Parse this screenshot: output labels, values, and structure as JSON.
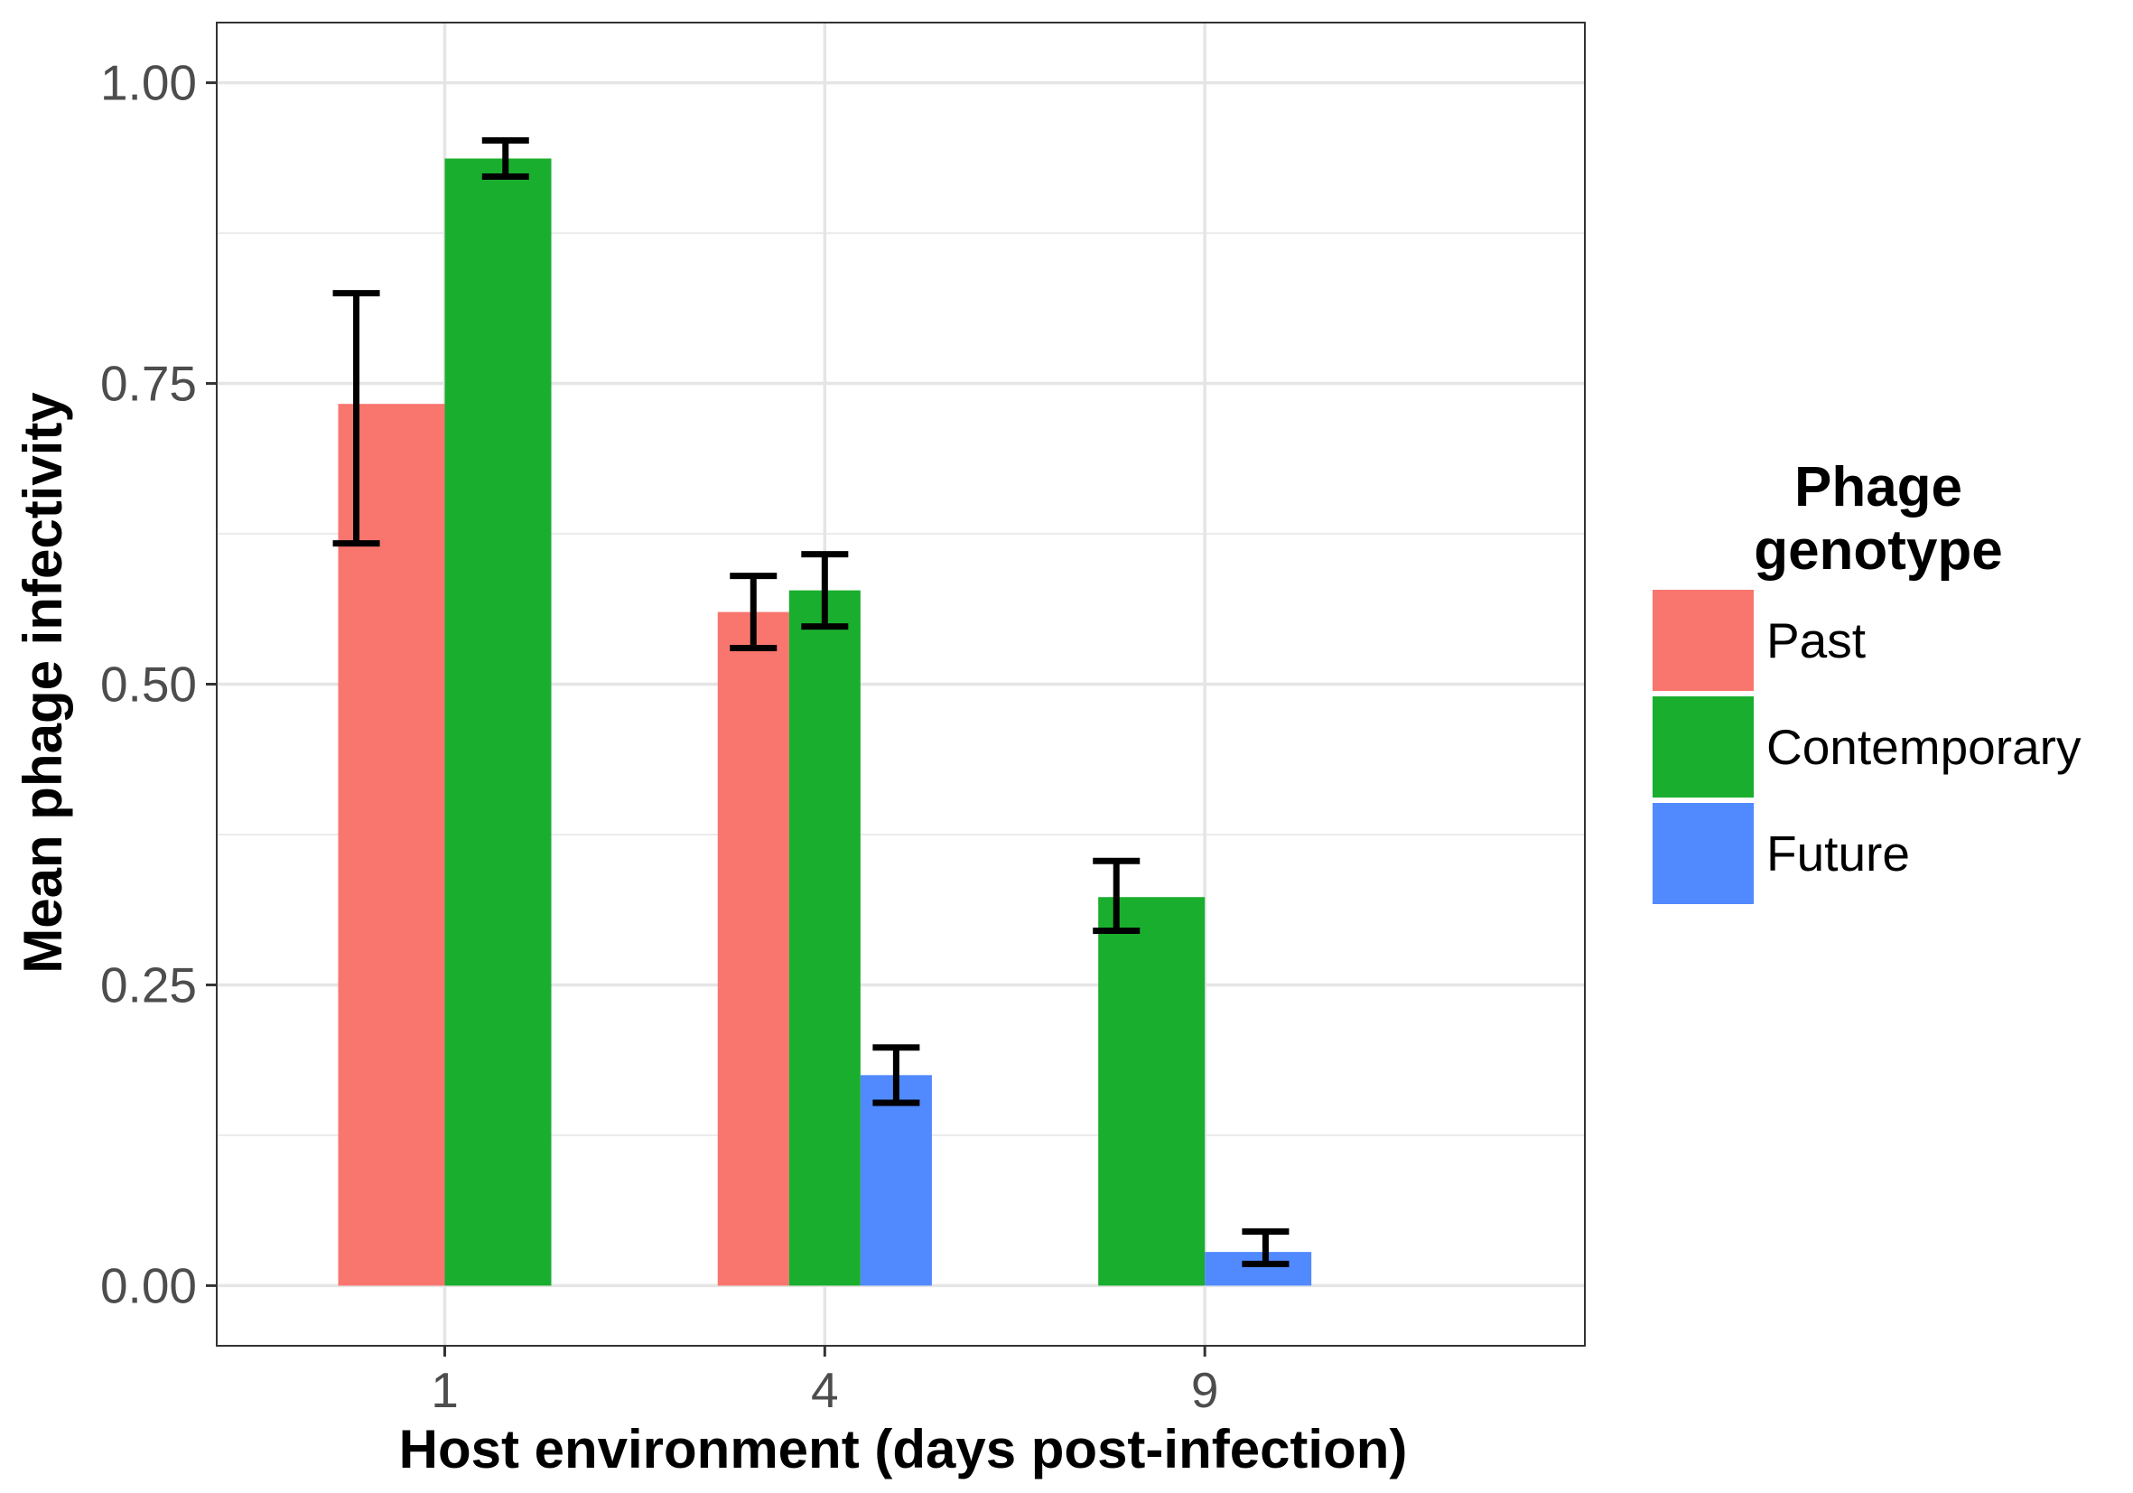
{
  "chart_data": {
    "type": "bar",
    "xlabel": "Host environment (days post-infection)",
    "ylabel": "Mean phage infectivity",
    "categories": [
      "1",
      "4",
      "9"
    ],
    "ylim": [
      -0.05,
      1.05
    ],
    "yticks": [
      "0.00",
      "0.25",
      "0.50",
      "0.75",
      "1.00"
    ],
    "grid": true,
    "legend": {
      "title_lines": [
        "Phage",
        "genotype"
      ],
      "placement": "right"
    },
    "series": [
      {
        "name": "Past",
        "color": "#F8766D",
        "values": [
          0.733,
          0.56,
          null
        ],
        "errors": [
          [
            0.617,
            0.825
          ],
          [
            0.53,
            0.59
          ],
          null
        ]
      },
      {
        "name": "Contemporary",
        "color": "#1AAE2E",
        "values": [
          0.937,
          0.578,
          0.323
        ],
        "errors": [
          [
            0.922,
            0.952
          ],
          [
            0.548,
            0.608
          ],
          [
            0.295,
            0.353
          ]
        ]
      },
      {
        "name": "Future",
        "color": "#5189FF",
        "values": [
          null,
          0.175,
          0.028
        ],
        "errors": [
          null,
          [
            0.152,
            0.198
          ],
          [
            0.018,
            0.045
          ]
        ]
      }
    ]
  }
}
